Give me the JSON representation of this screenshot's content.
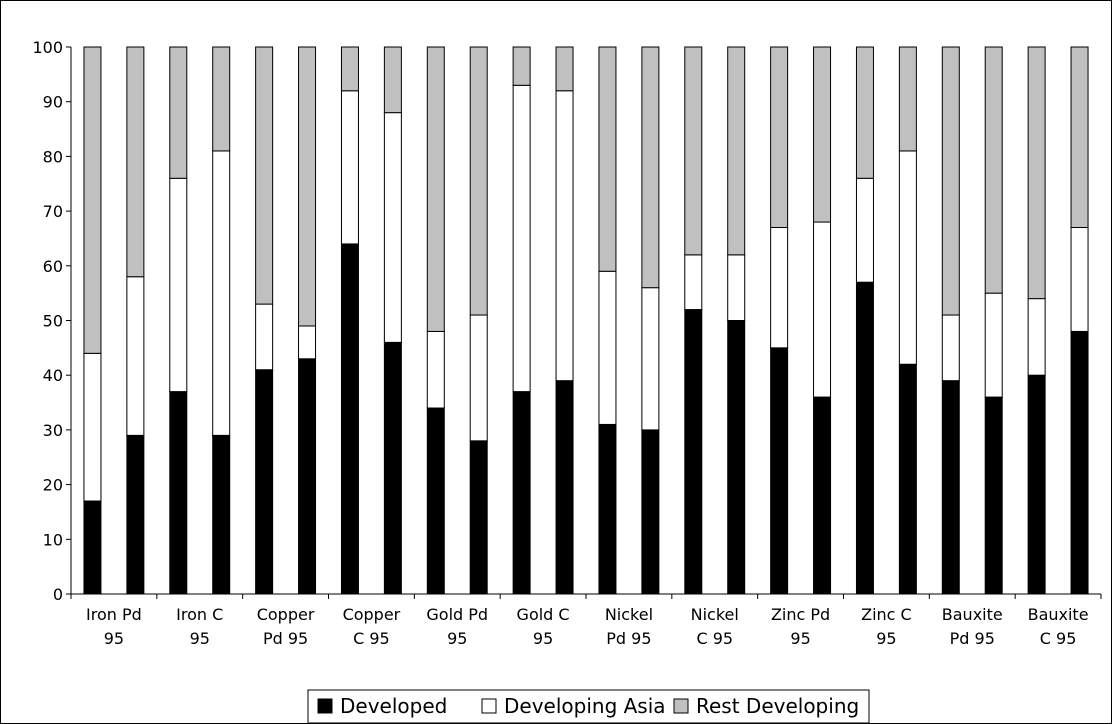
{
  "chart_data": {
    "type": "bar",
    "stacked": true,
    "ylim": [
      0,
      100
    ],
    "yticks": [
      0,
      10,
      20,
      30,
      40,
      50,
      60,
      70,
      80,
      90,
      100
    ],
    "xtick_labels": [
      [
        "Iron Pd",
        "95"
      ],
      [
        "Iron C",
        "95"
      ],
      [
        "Copper",
        "Pd 95"
      ],
      [
        "Copper",
        "C 95"
      ],
      [
        "Gold Pd",
        "95"
      ],
      [
        "Gold C",
        "95"
      ],
      [
        "Nickel",
        "Pd 95"
      ],
      [
        "Nickel",
        "C 95"
      ],
      [
        "Zinc Pd",
        "95"
      ],
      [
        "Zinc C",
        "95"
      ],
      [
        "Bauxite",
        "Pd 95"
      ],
      [
        "Bauxite",
        "C 95"
      ]
    ],
    "bar_count": 24,
    "legend_position": "bottom",
    "series": [
      {
        "name": "Developed",
        "color": "#000000",
        "values": [
          17,
          29,
          37,
          29,
          41,
          43,
          64,
          46,
          34,
          28,
          37,
          39,
          31,
          30,
          52,
          50,
          45,
          36,
          57,
          42,
          39,
          36,
          40,
          48
        ]
      },
      {
        "name": "Developing Asia",
        "color": "#ffffff",
        "values": [
          27,
          29,
          39,
          52,
          12,
          6,
          28,
          42,
          14,
          23,
          56,
          53,
          28,
          26,
          10,
          12,
          22,
          32,
          19,
          39,
          12,
          19,
          14,
          19
        ]
      },
      {
        "name": "Rest Developing",
        "color": "#c0c0c0",
        "values": [
          56,
          42,
          24,
          19,
          47,
          51,
          8,
          12,
          52,
          49,
          7,
          8,
          41,
          44,
          38,
          38,
          33,
          32,
          24,
          19,
          49,
          45,
          46,
          33
        ]
      }
    ]
  }
}
